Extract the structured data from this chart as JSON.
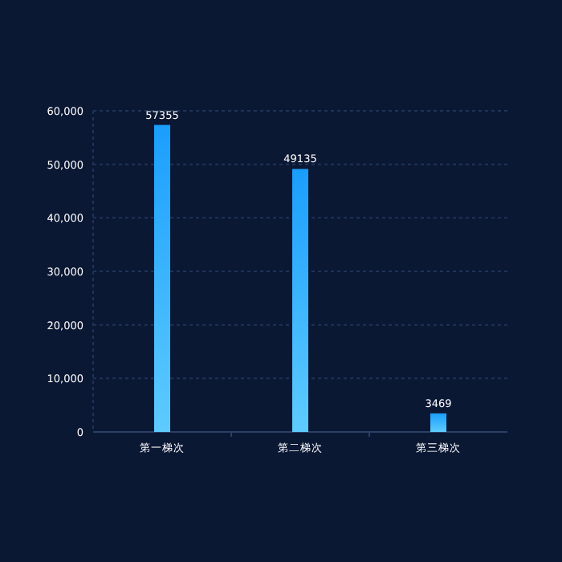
{
  "chart_data": {
    "type": "bar",
    "categories": [
      "第一梯次",
      "第二梯次",
      "第三梯次"
    ],
    "values": [
      57355,
      49135,
      3469
    ],
    "color": "#1a9efc",
    "ylim": [
      0,
      60000
    ],
    "yticks": [
      {
        "value": 0,
        "label": "0"
      },
      {
        "value": 10000,
        "label": "10,000"
      },
      {
        "value": 20000,
        "label": "20,000"
      },
      {
        "value": 30000,
        "label": "30,000"
      },
      {
        "value": 40000,
        "label": "40,000"
      },
      {
        "value": 50000,
        "label": "50,000"
      },
      {
        "value": 60000,
        "label": "60,000"
      }
    ],
    "grid": "y",
    "data_labels": true
  }
}
